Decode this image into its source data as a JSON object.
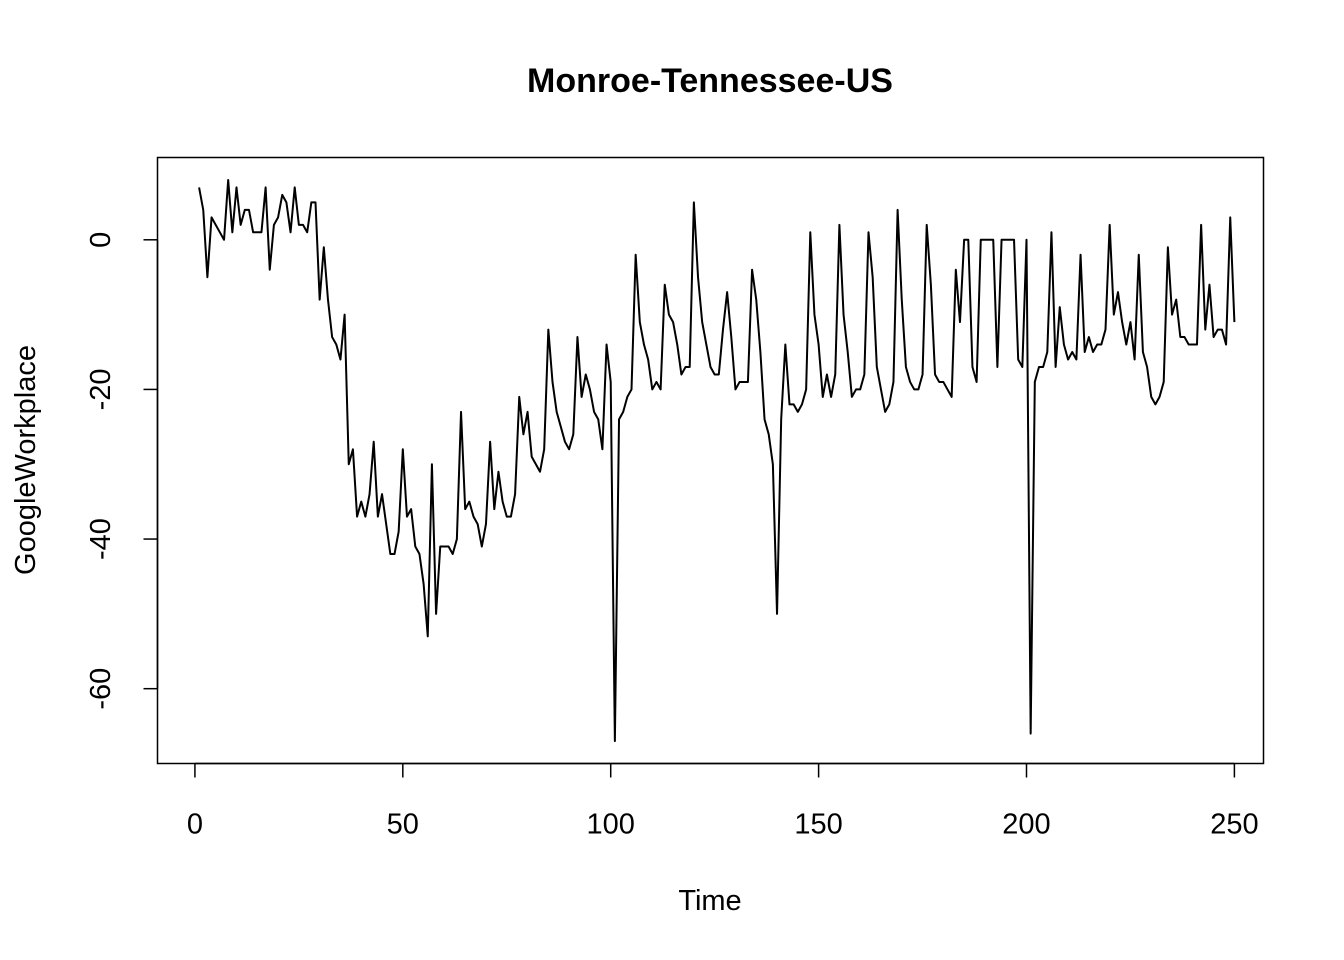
{
  "chart_data": {
    "type": "line",
    "title": "Monroe-Tennessee-US",
    "xlabel": "Time",
    "ylabel": "GoogleWorkplace",
    "xlim": [
      -9,
      257
    ],
    "ylim": [
      -70,
      11
    ],
    "x_ticks": [
      0,
      50,
      100,
      150,
      200,
      250
    ],
    "y_ticks": [
      0,
      -20,
      -40,
      -60
    ],
    "grid": false,
    "line_color": "#000000",
    "series": [
      {
        "x_start": 1,
        "values": [
          7,
          4,
          -5,
          3,
          2,
          1,
          0,
          8,
          1,
          7,
          2,
          4,
          4,
          1,
          1,
          1,
          7,
          -4,
          2,
          3,
          6,
          5,
          1,
          7,
          2,
          2,
          1,
          5,
          5,
          -8,
          -1,
          -8,
          -13,
          -14,
          -16,
          -10,
          -30,
          -28,
          -37,
          -35,
          -37,
          -34,
          -27,
          -37,
          -34,
          -38,
          -42,
          -42,
          -39,
          -28,
          -37,
          -36,
          -41,
          -42,
          -46,
          -53,
          -30,
          -50,
          -41,
          -41,
          -41,
          -42,
          -40,
          -23,
          -36,
          -35,
          -37,
          -38,
          -41,
          -38,
          -27,
          -36,
          -31,
          -35,
          -37,
          -37,
          -34,
          -21,
          -26,
          -23,
          -29,
          -30,
          -31,
          -28,
          -12,
          -19,
          -23,
          -25,
          -27,
          -28,
          -26,
          -13,
          -21,
          -18,
          -20,
          -23,
          -24,
          -28,
          -14,
          -19,
          -67,
          -24,
          -23,
          -21,
          -20,
          -2,
          -11,
          -14,
          -16,
          -20,
          -19,
          -20,
          -6,
          -10,
          -11,
          -14,
          -18,
          -17,
          -17,
          5,
          -5,
          -11,
          -14,
          -17,
          -18,
          -18,
          -12,
          -7,
          -13,
          -20,
          -19,
          -19,
          -19,
          -4,
          -8,
          -15,
          -24,
          -26,
          -30,
          -50,
          -24,
          -14,
          -22,
          -22,
          -23,
          -22,
          -20,
          1,
          -10,
          -14,
          -21,
          -18,
          -21,
          -18,
          2,
          -10,
          -15,
          -21,
          -20,
          -20,
          -18,
          1,
          -5,
          -17,
          -20,
          -23,
          -22,
          -19,
          4,
          -8,
          -17,
          -19,
          -20,
          -20,
          -18,
          2,
          -6,
          -18,
          -19,
          -19,
          -20,
          -21,
          -4,
          -11,
          0,
          0,
          -17,
          -19,
          0,
          0,
          0,
          0,
          -17,
          0,
          0,
          0,
          0,
          -16,
          -17,
          0,
          -66,
          -19,
          -17,
          -17,
          -15,
          1,
          -17,
          -9,
          -14,
          -16,
          -15,
          -16,
          -2,
          -15,
          -13,
          -15,
          -14,
          -14,
          -12,
          2,
          -10,
          -7,
          -11,
          -14,
          -11,
          -16,
          -2,
          -15,
          -17,
          -21,
          -22,
          -21,
          -19,
          -1,
          -10,
          -8,
          -13,
          -13,
          -14,
          -14,
          -14,
          2,
          -12,
          -6,
          -13,
          -12,
          -12,
          -14,
          3,
          -11
        ]
      }
    ]
  }
}
